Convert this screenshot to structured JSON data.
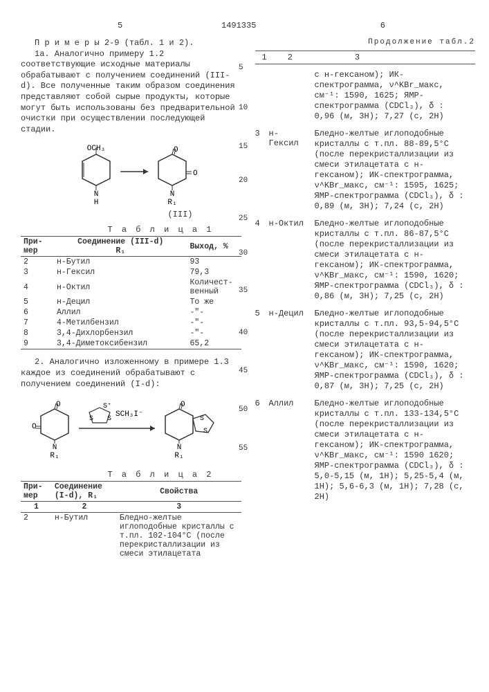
{
  "doc_number": "1491335",
  "page_left": "5",
  "page_right": "6",
  "left": {
    "para1_title": "П р и м е р ы  2-9 (табл. 1 и 2).",
    "para1": "1а. Аналогично примеру 1.2 соответствующие исходные материалы обрабатывают с получением соединений (III-d). Все полученные таким образом соединения представляют собой сырые продукты, которые могут быть использованы без предварительной очистки при осуществлении последующей стадии.",
    "scheme_label": "(III)",
    "table1_title": "Т а б л и ц а 1",
    "t1": {
      "h1": "При-\nмер",
      "h2": "Соединение (III-d)\nR₁",
      "h3": "Выход, %",
      "rows": [
        {
          "n": "2",
          "r": "н-Бутил",
          "y": "93"
        },
        {
          "n": "3",
          "r": "н-Гексил",
          "y": "79,3"
        },
        {
          "n": "4",
          "r": "н-Октил",
          "y": "Количест-\nвенный"
        },
        {
          "n": "5",
          "r": "н-Децил",
          "y": "То же"
        },
        {
          "n": "6",
          "r": "Аллил",
          "y": "-\"-"
        },
        {
          "n": "7",
          "r": "4-Метилбензил",
          "y": "-\"-"
        },
        {
          "n": "8",
          "r": "3,4-Дихлорбензил",
          "y": "-\"-"
        },
        {
          "n": "9",
          "r": "3,4-Диметоксибензил",
          "y": "65,2"
        }
      ]
    },
    "para2": "2. Аналогично изложенному в примере 1.3 каждое из соединений обрабатывают с получением соединений (I-d):",
    "table2_title": "Т а б л и ц а 2",
    "t2": {
      "h1": "При-\nмер",
      "h2": "Соединение\n(I-d), R₁",
      "h3": "Свойства",
      "sub1": "1",
      "sub2": "2",
      "sub3": "3",
      "row": {
        "n": "2",
        "r": "н-Бутил",
        "p": "Бледно-желтые иглоподобные кристаллы с т.пл. 102-104°С (после перекристаллизации из смеси этилацетата"
      }
    }
  },
  "right": {
    "cont_label": "Продолжение табл.2",
    "hdr": {
      "c1": "1",
      "c2": "2",
      "c3": "3"
    },
    "r_intro": "с н-гексаном); ИК-спектрограмма, ν^KBr_макс, см⁻¹: 1590, 1625; ЯМР-спектрограмма (CDCl₃), δ : 0,96 (м, 3H); 7,27 (с, 2H)",
    "rows": [
      {
        "n": "3",
        "r": "н-Гексил",
        "p": "Бледно-желтые иглоподобные кристаллы с т.пл. 88-89,5°С (после перекристаллизации из смеси этилацетата с н-гексаном); ИК-спектрограмма, ν^KBr_макс, см⁻¹: 1595, 1625; ЯМР-спектрограмма (CDCl₃), δ : 0,89 (м, 3H); 7,24 (с, 2H)"
      },
      {
        "n": "4",
        "r": "н-Октил",
        "p": "Бледно-желтые иглоподобные кристаллы с т.пл. 86-87,5°С (после перекристаллизации из смеси этилацетата с н-гексаном); ИК-спектрограмма, ν^KBr_макс, см⁻¹: 1590, 1620; ЯМР-спектрограмма (CDCl₃), δ : 0,86 (м, 3H); 7,25 (с, 2H)"
      },
      {
        "n": "5",
        "r": "н-Децил",
        "p": "Бледно-желтые иглоподобные кристаллы с т.пл. 93,5-94,5°С (после перекристаллизации из смеси этилацетата с н-гексаном); ИК-спектрограмма, ν^KBr_макс, см⁻¹: 1590, 1620; ЯМР-спектрограмма (CDCl₃), δ : 0,87 (м, 3H); 7,25 (с, 2H)"
      },
      {
        "n": "6",
        "r": "Аллил",
        "p": "Бледно-желтые иглоподобные кристаллы с т.пл. 133-134,5°С (после перекристаллизации из смеси этилацетата с н-гексаном); ИК-спектрограмма, ν^KBr_макс, см⁻¹: 1590 1620; ЯМР-спектрограмма (CDCl₃), δ : 5,0-5,15 (м, 1H); 5,25-5,4 (м, 1H); 5,6-6,3 (м, 1H); 7,28 (с, 2H)"
      }
    ]
  },
  "linenums": [
    "5",
    "10",
    "15",
    "20",
    "25",
    "30",
    "35",
    "40",
    "45",
    "50",
    "55"
  ]
}
